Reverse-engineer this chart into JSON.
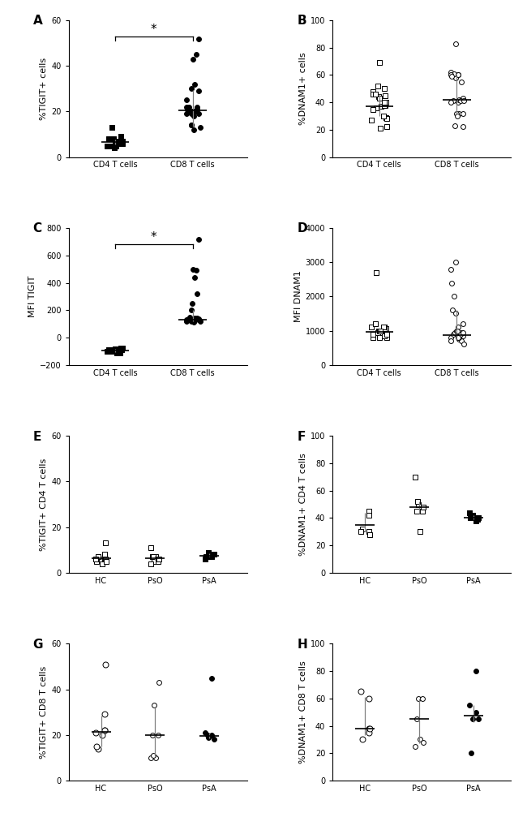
{
  "panel_A": {
    "label": "A",
    "ylabel": "%TIGIT+ cells",
    "ylim": [
      0,
      60
    ],
    "yticks": [
      0,
      20,
      40,
      60
    ],
    "groups": [
      "CD4 T cells",
      "CD8 T cells"
    ],
    "data": [
      [
        9,
        7,
        6,
        5,
        8,
        6,
        7,
        5,
        6,
        7,
        13,
        6,
        5,
        4,
        7,
        8,
        6,
        5,
        7,
        6,
        8,
        7,
        6,
        5,
        7
      ],
      [
        20,
        19,
        22,
        18,
        21,
        29,
        20,
        25,
        14,
        12,
        22,
        20,
        19,
        30,
        20,
        22,
        32,
        45,
        43,
        52,
        21,
        20,
        19,
        13,
        14
      ]
    ],
    "medians": [
      6.5,
      20.5
    ],
    "q1": [
      5.5,
      13.5
    ],
    "q3": [
      7.5,
      29.5
    ],
    "marker_types": [
      "filled_square",
      "filled_circle"
    ],
    "sig": true
  },
  "panel_B": {
    "label": "B",
    "ylabel": "%DNAM1+ cells",
    "ylim": [
      0,
      100
    ],
    "yticks": [
      0,
      20,
      40,
      60,
      80,
      100
    ],
    "groups": [
      "CD4 T cells",
      "CD8 T cells"
    ],
    "data": [
      [
        38,
        45,
        50,
        46,
        48,
        40,
        37,
        27,
        29,
        28,
        36,
        38,
        46,
        44,
        38,
        52,
        69,
        35,
        40,
        43,
        46,
        30,
        22,
        21
      ],
      [
        60,
        58,
        62,
        60,
        42,
        43,
        61,
        60,
        83,
        40,
        41,
        32,
        22,
        23,
        32,
        55,
        42,
        41,
        30,
        32,
        59,
        60,
        40,
        41
      ]
    ],
    "medians": [
      37,
      42
    ],
    "q1": [
      30,
      32
    ],
    "q3": [
      46,
      60
    ],
    "marker_types": [
      "open_square",
      "open_circle"
    ],
    "sig": false
  },
  "panel_C": {
    "label": "C",
    "ylabel": "MFI TIGIT",
    "ylim": [
      -200,
      800
    ],
    "yticks": [
      -200,
      0,
      200,
      400,
      600,
      800
    ],
    "groups": [
      "CD4 T cells",
      "CD8 T cells"
    ],
    "data": [
      [
        -80,
        -90,
        -100,
        -90,
        -100,
        -80,
        -110,
        -100,
        -90,
        -80,
        -100,
        -110,
        -90,
        -95,
        -100,
        -90,
        -85,
        -95,
        -100,
        -95
      ],
      [
        130,
        120,
        125,
        130,
        140,
        130,
        150,
        120,
        125,
        115,
        130,
        140,
        135,
        200,
        250,
        320,
        440,
        490,
        500,
        720,
        130,
        125,
        130,
        120
      ]
    ],
    "medians": [
      -95,
      130
    ],
    "q1": [
      -105,
      120
    ],
    "q3": [
      -83,
      200
    ],
    "marker_types": [
      "filled_square",
      "filled_circle"
    ],
    "sig": true
  },
  "panel_D": {
    "label": "D",
    "ylabel": "MFI DNAM1",
    "ylim": [
      0,
      4000
    ],
    "yticks": [
      0,
      1000,
      2000,
      3000,
      4000
    ],
    "groups": [
      "CD4 T cells",
      "CD8 T cells"
    ],
    "data": [
      [
        950,
        900,
        1100,
        1200,
        800,
        950,
        900,
        1100,
        1050,
        800,
        2700,
        850,
        900,
        1000,
        1100,
        950,
        1000,
        900,
        1050,
        800,
        1200,
        1100,
        900,
        1000
      ],
      [
        1600,
        1500,
        800,
        1100,
        950,
        1200,
        2000,
        2800,
        3000,
        850,
        900,
        750,
        850,
        950,
        1000,
        700,
        800,
        900,
        1000,
        950,
        2400,
        800,
        700,
        600
      ]
    ],
    "medians": [
      970,
      875
    ],
    "q1": [
      860,
      750
    ],
    "q3": [
      1075,
      1600
    ],
    "marker_types": [
      "open_square",
      "open_circle"
    ],
    "sig": false
  },
  "panel_E": {
    "label": "E",
    "ylabel": "%TIGIT+ CD4 T cells",
    "ylim": [
      0,
      60
    ],
    "yticks": [
      0,
      20,
      40,
      60
    ],
    "groups": [
      "HC",
      "PsO",
      "PsA"
    ],
    "data": [
      [
        7,
        6,
        8,
        7,
        5,
        6,
        4,
        6,
        13,
        5
      ],
      [
        7,
        5,
        11,
        7,
        5,
        6,
        7,
        4
      ],
      [
        7,
        8,
        9,
        6,
        8,
        7,
        7,
        8,
        7
      ]
    ],
    "medians": [
      6.5,
      6.5,
      7.5
    ],
    "q1": [
      5.5,
      5.5,
      7.0
    ],
    "q3": [
      7.5,
      7.5,
      8.5
    ],
    "marker_types": [
      "crosshatch_square",
      "open_square",
      "filled_square"
    ],
    "sig": false
  },
  "panel_F": {
    "label": "F",
    "ylabel": "%DNAM1+ CD4 T cells",
    "ylim": [
      0,
      100
    ],
    "yticks": [
      0,
      20,
      40,
      60,
      80,
      100
    ],
    "groups": [
      "HC",
      "PsO",
      "PsA"
    ],
    "data": [
      [
        30,
        45,
        42,
        32,
        30,
        28
      ],
      [
        45,
        50,
        70,
        30,
        45,
        48,
        52
      ],
      [
        38,
        40,
        42,
        44,
        40,
        41,
        40,
        39
      ]
    ],
    "medians": [
      35,
      48,
      40
    ],
    "q1": [
      30,
      43,
      39
    ],
    "q3": [
      44,
      52,
      42
    ],
    "marker_types": [
      "crosshatch_square",
      "open_square",
      "filled_square"
    ],
    "sig": false
  },
  "panel_G": {
    "label": "G",
    "ylabel": "%TIGIT+ CD8 T cells",
    "ylim": [
      0,
      60
    ],
    "yticks": [
      0,
      20,
      40,
      60
    ],
    "groups": [
      "HC",
      "PsO",
      "PsA"
    ],
    "data": [
      [
        22,
        29,
        22,
        14,
        15,
        51,
        20,
        21
      ],
      [
        20,
        33,
        10,
        10,
        20,
        43,
        11
      ],
      [
        45,
        20,
        19,
        21,
        18,
        20
      ]
    ],
    "medians": [
      21.5,
      20,
      19.5
    ],
    "q1": [
      15,
      10.5,
      18.5
    ],
    "q3": [
      28.5,
      32,
      20.5
    ],
    "marker_types": [
      "crosshatch_circle",
      "open_circle",
      "filled_circle"
    ],
    "sig": false
  },
  "panel_H": {
    "label": "H",
    "ylabel": "%DNAM1+ CD8 T cells",
    "ylim": [
      0,
      100
    ],
    "yticks": [
      0,
      20,
      40,
      60,
      80,
      100
    ],
    "groups": [
      "HC",
      "PsO",
      "PsA"
    ],
    "data": [
      [
        38,
        60,
        35,
        30,
        65,
        38
      ],
      [
        45,
        60,
        25,
        30,
        60,
        28
      ],
      [
        80,
        50,
        45,
        55,
        45,
        20
      ]
    ],
    "medians": [
      38,
      45,
      47.5
    ],
    "q1": [
      33,
      27.5,
      42.5
    ],
    "q3": [
      61,
      60,
      55
    ],
    "marker_types": [
      "crosshatch_circle",
      "open_circle",
      "filled_circle"
    ],
    "sig": false
  }
}
